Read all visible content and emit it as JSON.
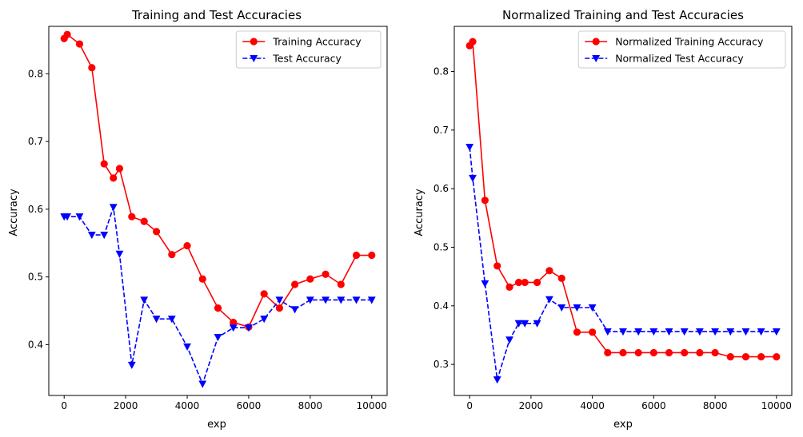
{
  "chart_data": [
    {
      "type": "line",
      "title": "Training and Test Accuracies",
      "xlabel": "exp",
      "ylabel": "Accuracy",
      "xlim": [
        -500,
        10500
      ],
      "ylim": [
        0.325,
        0.87
      ],
      "xticks": [
        0,
        2000,
        4000,
        6000,
        8000,
        10000
      ],
      "yticks": [
        0.4,
        0.5,
        0.6,
        0.7,
        0.8
      ],
      "xtick_labels": [
        "0",
        "2000",
        "4000",
        "6000",
        "8000",
        "10000"
      ],
      "ytick_labels": [
        "0.4",
        "0.5",
        "0.6",
        "0.7",
        "0.8"
      ],
      "legend_position": "top-right",
      "grid": false,
      "series": [
        {
          "name": "Training Accuracy",
          "color": "#ff0000",
          "linestyle": "solid",
          "marker": "circle",
          "x": [
            0,
            100,
            500,
            900,
            1300,
            1600,
            1800,
            2200,
            2600,
            3000,
            3500,
            4000,
            4500,
            5000,
            5500,
            6000,
            6500,
            7000,
            7500,
            8000,
            8500,
            9000,
            9500,
            10000
          ],
          "y": [
            0.852,
            0.858,
            0.844,
            0.809,
            0.667,
            0.646,
            0.66,
            0.589,
            0.582,
            0.567,
            0.533,
            0.546,
            0.497,
            0.454,
            0.433,
            0.426,
            0.475,
            0.454,
            0.489,
            0.497,
            0.504,
            0.489,
            0.532,
            0.532
          ]
        },
        {
          "name": "Test Accuracy",
          "color": "#0000ff",
          "linestyle": "dashed",
          "marker": "triangle-down",
          "x": [
            0,
            100,
            500,
            900,
            1300,
            1600,
            1800,
            2200,
            2600,
            3000,
            3500,
            4000,
            4500,
            5000,
            5500,
            6000,
            6500,
            7000,
            7500,
            8000,
            8500,
            9000,
            9500,
            10000
          ],
          "y": [
            0.589,
            0.589,
            0.589,
            0.562,
            0.562,
            0.603,
            0.534,
            0.37,
            0.466,
            0.438,
            0.438,
            0.397,
            0.342,
            0.411,
            0.425,
            0.425,
            0.438,
            0.466,
            0.452,
            0.466,
            0.466,
            0.466,
            0.466,
            0.466
          ]
        }
      ]
    },
    {
      "type": "line",
      "title": "Normalized Training and Test Accuracies",
      "xlabel": "exp",
      "ylabel": "Accuracy",
      "xlim": [
        -500,
        10500
      ],
      "ylim": [
        0.247,
        0.877
      ],
      "xticks": [
        0,
        2000,
        4000,
        6000,
        8000,
        10000
      ],
      "yticks": [
        0.3,
        0.4,
        0.5,
        0.6,
        0.7,
        0.8
      ],
      "xtick_labels": [
        "0",
        "2000",
        "4000",
        "6000",
        "8000",
        "10000"
      ],
      "ytick_labels": [
        "0.3",
        "0.4",
        "0.5",
        "0.6",
        "0.7",
        "0.8"
      ],
      "legend_position": "top-right",
      "grid": false,
      "series": [
        {
          "name": "Normalized Training Accuracy",
          "color": "#ff0000",
          "linestyle": "solid",
          "marker": "circle",
          "x": [
            0,
            100,
            500,
            900,
            1300,
            1600,
            1800,
            2200,
            2600,
            3000,
            3500,
            4000,
            4500,
            5000,
            5500,
            6000,
            6500,
            7000,
            7500,
            8000,
            8500,
            9000,
            9500,
            10000
          ],
          "y": [
            0.844,
            0.851,
            0.58,
            0.468,
            0.432,
            0.44,
            0.44,
            0.44,
            0.46,
            0.447,
            0.355,
            0.355,
            0.32,
            0.32,
            0.32,
            0.32,
            0.32,
            0.32,
            0.32,
            0.32,
            0.313,
            0.313,
            0.313,
            0.313
          ]
        },
        {
          "name": "Normalized Test Accuracy",
          "color": "#0000ff",
          "linestyle": "dashed",
          "marker": "triangle-down",
          "x": [
            0,
            100,
            500,
            900,
            1300,
            1600,
            1800,
            2200,
            2600,
            3000,
            3500,
            4000,
            4500,
            5000,
            5500,
            6000,
            6500,
            7000,
            7500,
            8000,
            8500,
            9000,
            9500,
            10000
          ],
          "y": [
            0.671,
            0.618,
            0.438,
            0.274,
            0.342,
            0.37,
            0.37,
            0.37,
            0.411,
            0.397,
            0.397,
            0.397,
            0.356,
            0.356,
            0.356,
            0.356,
            0.356,
            0.356,
            0.356,
            0.356,
            0.356,
            0.356,
            0.356,
            0.356
          ]
        }
      ]
    }
  ]
}
